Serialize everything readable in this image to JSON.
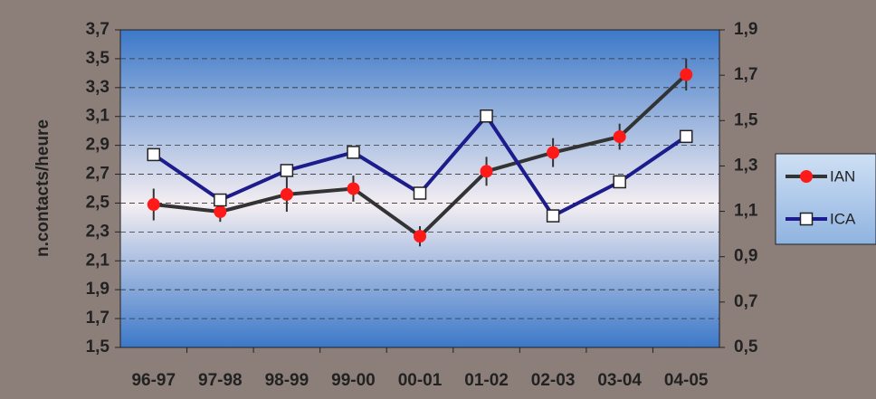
{
  "chart_data": {
    "type": "line",
    "y_label": "n.contacts/heure",
    "categories": [
      "96-97",
      "97-98",
      "98-99",
      "99-00",
      "00-01",
      "01-02",
      "02-03",
      "03-04",
      "04-05"
    ],
    "series": [
      {
        "name": "IAN",
        "color": "#333333",
        "marker": "circle",
        "marker_color": "#ff1a1a",
        "axis": "y",
        "values": [
          2.49,
          2.44,
          2.56,
          2.6,
          2.27,
          2.72,
          2.85,
          2.96,
          3.39
        ],
        "errors": [
          0.11,
          0.07,
          0.12,
          0.09,
          0.07,
          0.1,
          0.1,
          0.09,
          0.11
        ]
      },
      {
        "name": "ICA",
        "color": "#1c1c8c",
        "marker": "square",
        "marker_color": "#ffffff",
        "axis": "y2",
        "values": [
          1.35,
          1.15,
          1.28,
          1.36,
          1.18,
          1.52,
          1.08,
          1.23,
          1.43
        ]
      }
    ],
    "ylim": [
      1.5,
      3.7
    ],
    "yticks": [
      {
        "value": 1.5,
        "label": "1,5"
      },
      {
        "value": 1.7,
        "label": "1,7"
      },
      {
        "value": 1.9,
        "label": "1,9"
      },
      {
        "value": 2.1,
        "label": "2,1"
      },
      {
        "value": 2.3,
        "label": "2,3"
      },
      {
        "value": 2.5,
        "label": "2,5"
      },
      {
        "value": 2.7,
        "label": "2,7"
      },
      {
        "value": 2.9,
        "label": "2,9"
      },
      {
        "value": 3.1,
        "label": "3,1"
      },
      {
        "value": 3.3,
        "label": "3,3"
      },
      {
        "value": 3.5,
        "label": "3,5"
      },
      {
        "value": 3.7,
        "label": "3,7"
      }
    ],
    "y2lim": [
      0.5,
      1.9
    ],
    "y2ticks": [
      {
        "value": 0.5,
        "label": "0,5"
      },
      {
        "value": 0.7,
        "label": "0,7"
      },
      {
        "value": 0.9,
        "label": "0,9"
      },
      {
        "value": 1.1,
        "label": "1,1"
      },
      {
        "value": 1.3,
        "label": "1,3"
      },
      {
        "value": 1.5,
        "label": "1,5"
      },
      {
        "value": 1.7,
        "label": "1,7"
      },
      {
        "value": 1.9,
        "label": "1,9"
      }
    ],
    "grid": true,
    "legend": "right"
  }
}
